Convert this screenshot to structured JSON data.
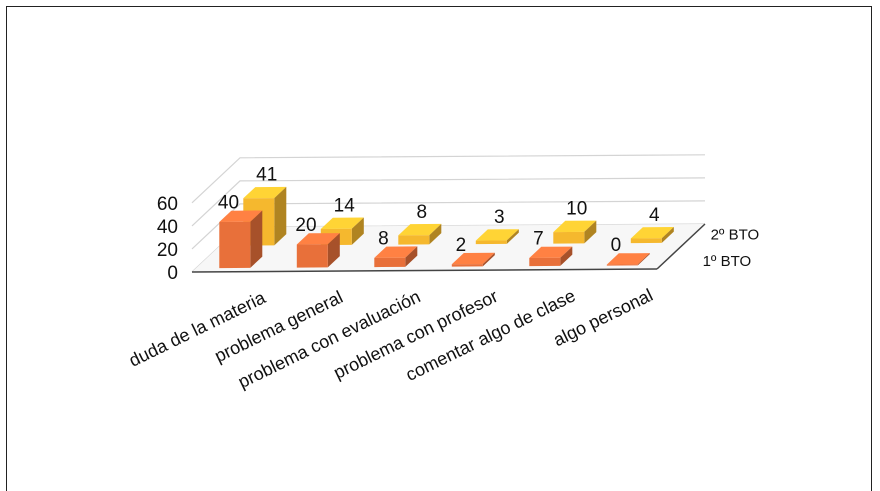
{
  "chart_data": {
    "type": "bar",
    "categories": [
      "duda de la materia",
      "problema general",
      "problema con evaluación",
      "problema con profesor",
      "comentar algo de clase",
      "algo personal"
    ],
    "series": [
      {
        "name": "1º BTO",
        "values": [
          40,
          20,
          8,
          2,
          7,
          0
        ],
        "color": "#e8703a"
      },
      {
        "name": "2º BTO",
        "values": [
          41,
          14,
          8,
          3,
          10,
          4
        ],
        "color": "#f5b82e"
      }
    ],
    "yticks": [
      "0",
      "20",
      "40",
      "60"
    ],
    "ylim": [
      0,
      60
    ],
    "grid": true,
    "style": "3d-column"
  }
}
